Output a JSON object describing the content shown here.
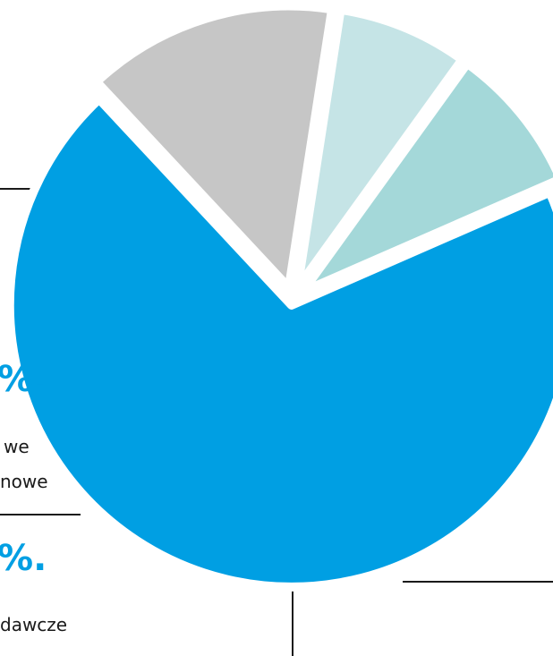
{
  "chart_data": {
    "type": "pie",
    "exploded": true,
    "start_angle_deg": -23.6,
    "colors": [
      "#009FE3",
      "#C6C6C6",
      "#C5E4E6",
      "#A4D8D9"
    ],
    "slices": [
      {
        "value": 69.6,
        "color": "#009FE3"
      },
      {
        "value": 14.4,
        "color": "#C6C6C6"
      },
      {
        "value": 7.5,
        "color": "#C5E4E6"
      },
      {
        "value": 8.5,
        "color": "#A4D8D9"
      }
    ],
    "labels": [
      {
        "percent_text": "%.",
        "lines": [
          "we",
          "nowe"
        ]
      },
      {
        "percent_text": "%.",
        "lines": [
          "dawcze"
        ]
      }
    ]
  }
}
